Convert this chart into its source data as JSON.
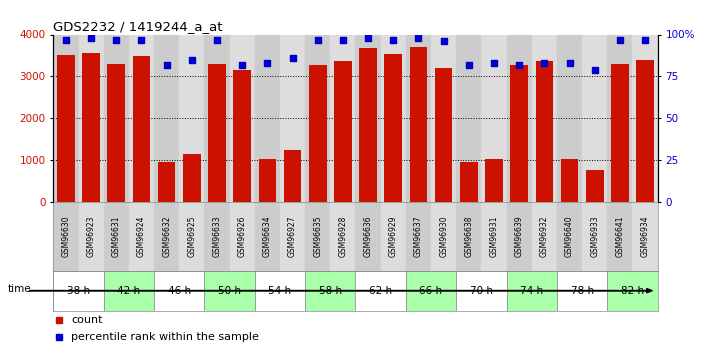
{
  "title": "GDS2232 / 1419244_a_at",
  "samples": [
    "GSM96630",
    "GSM96923",
    "GSM96631",
    "GSM96924",
    "GSM96632",
    "GSM96925",
    "GSM96633",
    "GSM96926",
    "GSM96634",
    "GSM96927",
    "GSM96635",
    "GSM96928",
    "GSM96636",
    "GSM96929",
    "GSM96637",
    "GSM96930",
    "GSM96638",
    "GSM96931",
    "GSM96639",
    "GSM96932",
    "GSM96640",
    "GSM96933",
    "GSM96641",
    "GSM96934"
  ],
  "counts": [
    3520,
    3560,
    3300,
    3490,
    960,
    1150,
    3300,
    3160,
    1020,
    1230,
    3280,
    3360,
    3680,
    3530,
    3690,
    3200,
    960,
    1020,
    3280,
    3360,
    1030,
    750,
    3300,
    3390
  ],
  "percentile_ranks": [
    97,
    98,
    97,
    97,
    82,
    85,
    97,
    82,
    83,
    86,
    97,
    97,
    98,
    97,
    98,
    96,
    82,
    83,
    82,
    83,
    83,
    79,
    97,
    97
  ],
  "time_labels": [
    "38 h",
    "42 h",
    "46 h",
    "50 h",
    "54 h",
    "58 h",
    "62 h",
    "66 h",
    "70 h",
    "74 h",
    "78 h",
    "82 h"
  ],
  "ylim_left": [
    0,
    4000
  ],
  "ylim_right": [
    0,
    100
  ],
  "yticks_left": [
    0,
    1000,
    2000,
    3000,
    4000
  ],
  "yticks_right": [
    0,
    25,
    50,
    75,
    100
  ],
  "yticklabels_right": [
    "0",
    "25",
    "50",
    "75",
    "100%"
  ],
  "bar_color": "#cc1100",
  "dot_color": "#0000cc",
  "bg_color": "#ffffff",
  "sample_bg_colors": [
    "#cccccc",
    "#dddddd"
  ],
  "time_bg_colors": [
    "#ffffff",
    "#aaffaa"
  ],
  "legend_count_label": "count",
  "legend_pct_label": "percentile rank within the sample"
}
